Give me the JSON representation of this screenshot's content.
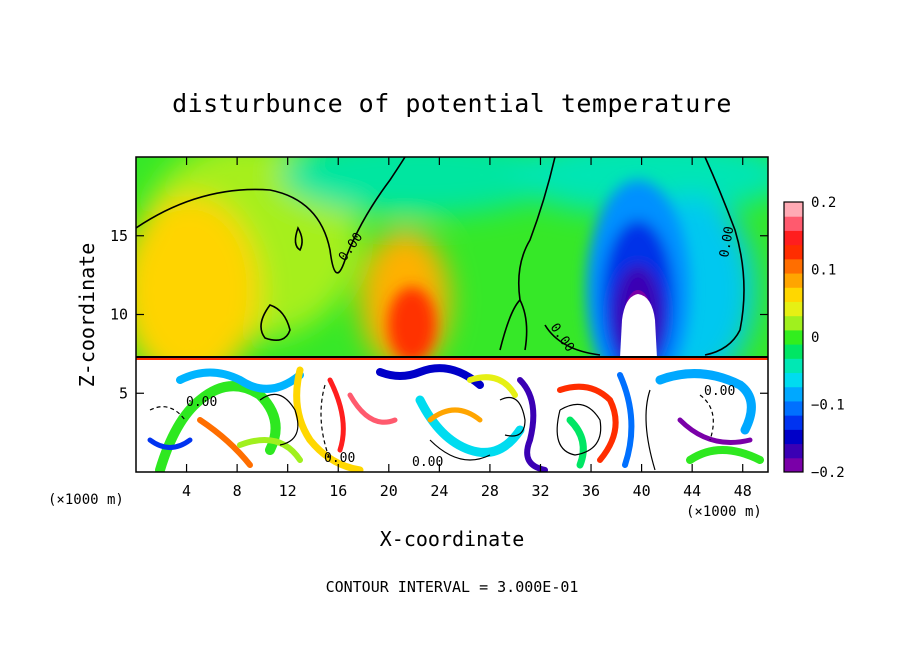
{
  "chart_data": {
    "type": "heatmap",
    "title": "disturbunce of potential temperature",
    "xlabel": "X-coordinate",
    "ylabel": "Z-coordinate",
    "x_units": "(×1000 m)",
    "y_units": "(×1000 m)",
    "xlim": [
      0,
      50
    ],
    "ylim": [
      0,
      20
    ],
    "x_ticks": [
      4,
      8,
      12,
      16,
      20,
      24,
      28,
      32,
      36,
      40,
      44,
      48
    ],
    "y_ticks": [
      5,
      10,
      15
    ],
    "contour_interval_text": "CONTOUR INTERVAL = 3.000E-01",
    "contour_label": "0.00",
    "colorbar": {
      "range": [
        -0.2,
        0.2
      ],
      "tick_values": [
        0.2,
        0.1,
        0,
        -0.1,
        -0.2
      ],
      "tick_labels": [
        "0.2",
        "0.1",
        "0",
        "−0.1",
        "−0.2"
      ],
      "colors": [
        "#7a00a8",
        "#3a00b4",
        "#0000c8",
        "#0033f0",
        "#0070ff",
        "#00a8ff",
        "#00dcf0",
        "#00e8b4",
        "#00e664",
        "#32ee1e",
        "#a0f01e",
        "#e6f014",
        "#ffd700",
        "#ffa500",
        "#ff6e00",
        "#ff2d00",
        "#ff1e1e",
        "#ff5a6e",
        "#ffaab4"
      ]
    },
    "features": [
      {
        "name": "positive anomaly",
        "x": 5,
        "z": 13,
        "value": 0.09
      },
      {
        "name": "positive anomaly",
        "x": 22,
        "z": 9.5,
        "value": 0.15
      },
      {
        "name": "negative anomaly",
        "x": 40,
        "z": 12,
        "value": -0.2
      },
      {
        "name": "negative anomaly",
        "x": 46,
        "z": 11,
        "value": -0.06
      },
      {
        "name": "turbulent layer",
        "z_top": 7.2
      }
    ]
  }
}
